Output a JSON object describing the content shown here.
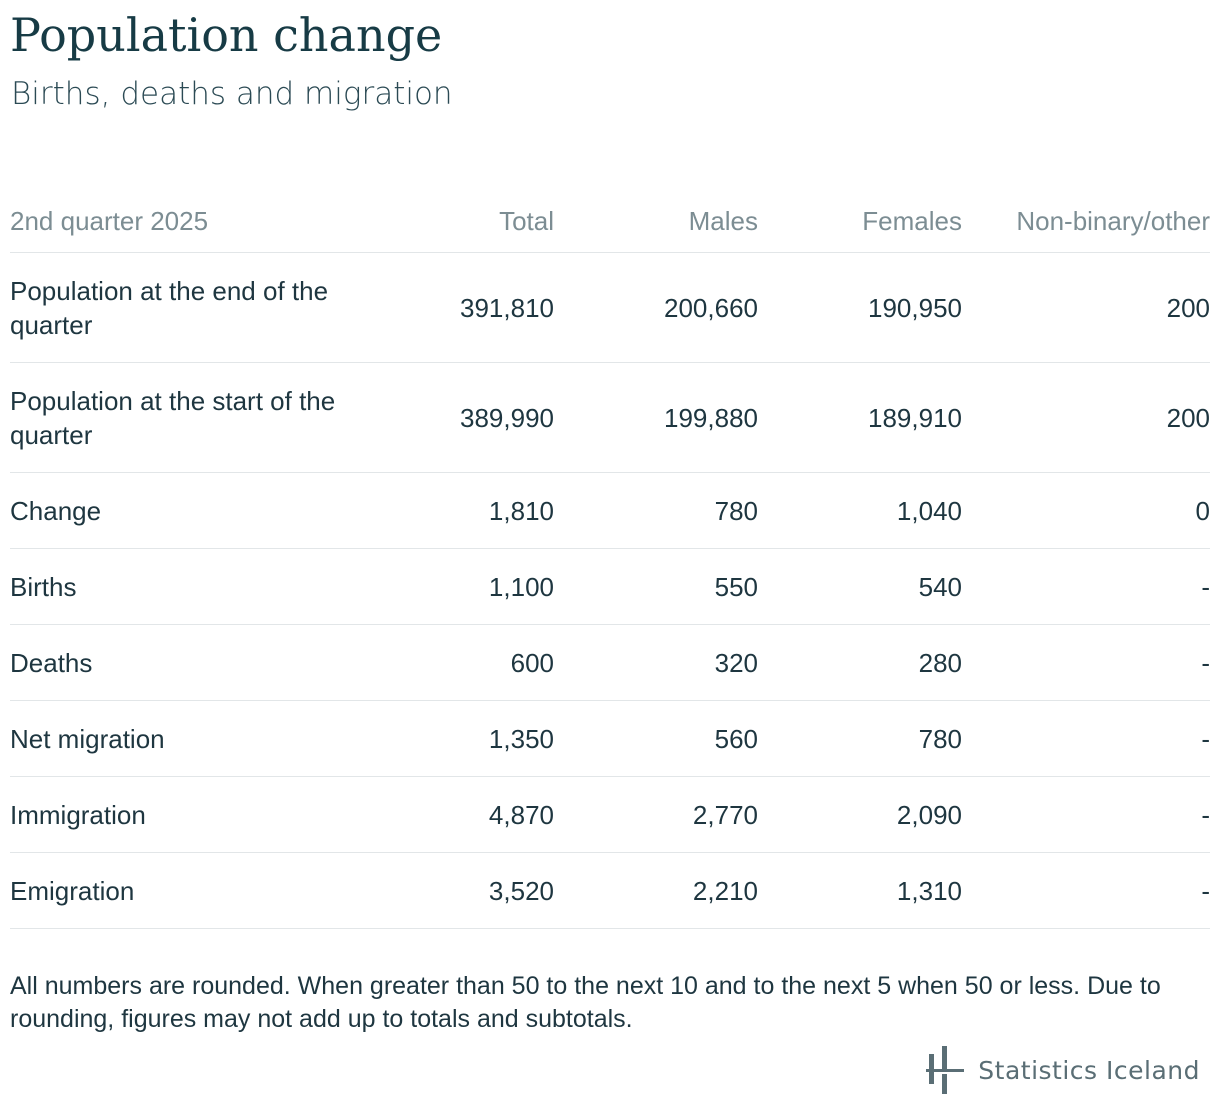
{
  "title": "Population change",
  "subtitle": "Births, deaths and migration",
  "chart_data": {
    "type": "table",
    "title": "Population change",
    "subtitle": "Births, deaths and migration",
    "columns": [
      "2nd quarter 2025",
      "Total",
      "Males",
      "Females",
      "Non-binary/other"
    ],
    "rows": [
      {
        "label": "Population at the end of the quarter",
        "values": [
          "391,810",
          "200,660",
          "190,950",
          "200"
        ]
      },
      {
        "label": "Population at the start of the quarter",
        "values": [
          "389,990",
          "199,880",
          "189,910",
          "200"
        ]
      },
      {
        "label": "Change",
        "values": [
          "1,810",
          "780",
          "1,040",
          "0"
        ]
      },
      {
        "label": "Births",
        "values": [
          "1,100",
          "550",
          "540",
          "-"
        ]
      },
      {
        "label": "Deaths",
        "values": [
          "600",
          "320",
          "280",
          "-"
        ]
      },
      {
        "label": "Net migration",
        "values": [
          "1,350",
          "560",
          "780",
          "-"
        ]
      },
      {
        "label": "Immigration",
        "values": [
          "4,870",
          "2,770",
          "2,090",
          "-"
        ]
      },
      {
        "label": "Emigration",
        "values": [
          "3,520",
          "2,210",
          "1,310",
          "-"
        ]
      }
    ]
  },
  "note": "All numbers are rounded. When greater than 50 to the next 10 and to the next 5 when 50 or less. Due to rounding, figures may not add up to totals and subtotals.",
  "logo": {
    "text": "Statistics Iceland",
    "icon": "statistics-iceland-logo-icon",
    "color": "#5a6e75"
  },
  "colors": {
    "title": "#173b45",
    "header_text": "#7c8d93",
    "body_text": "#1e3640",
    "row_border": "#e2e6e8"
  }
}
